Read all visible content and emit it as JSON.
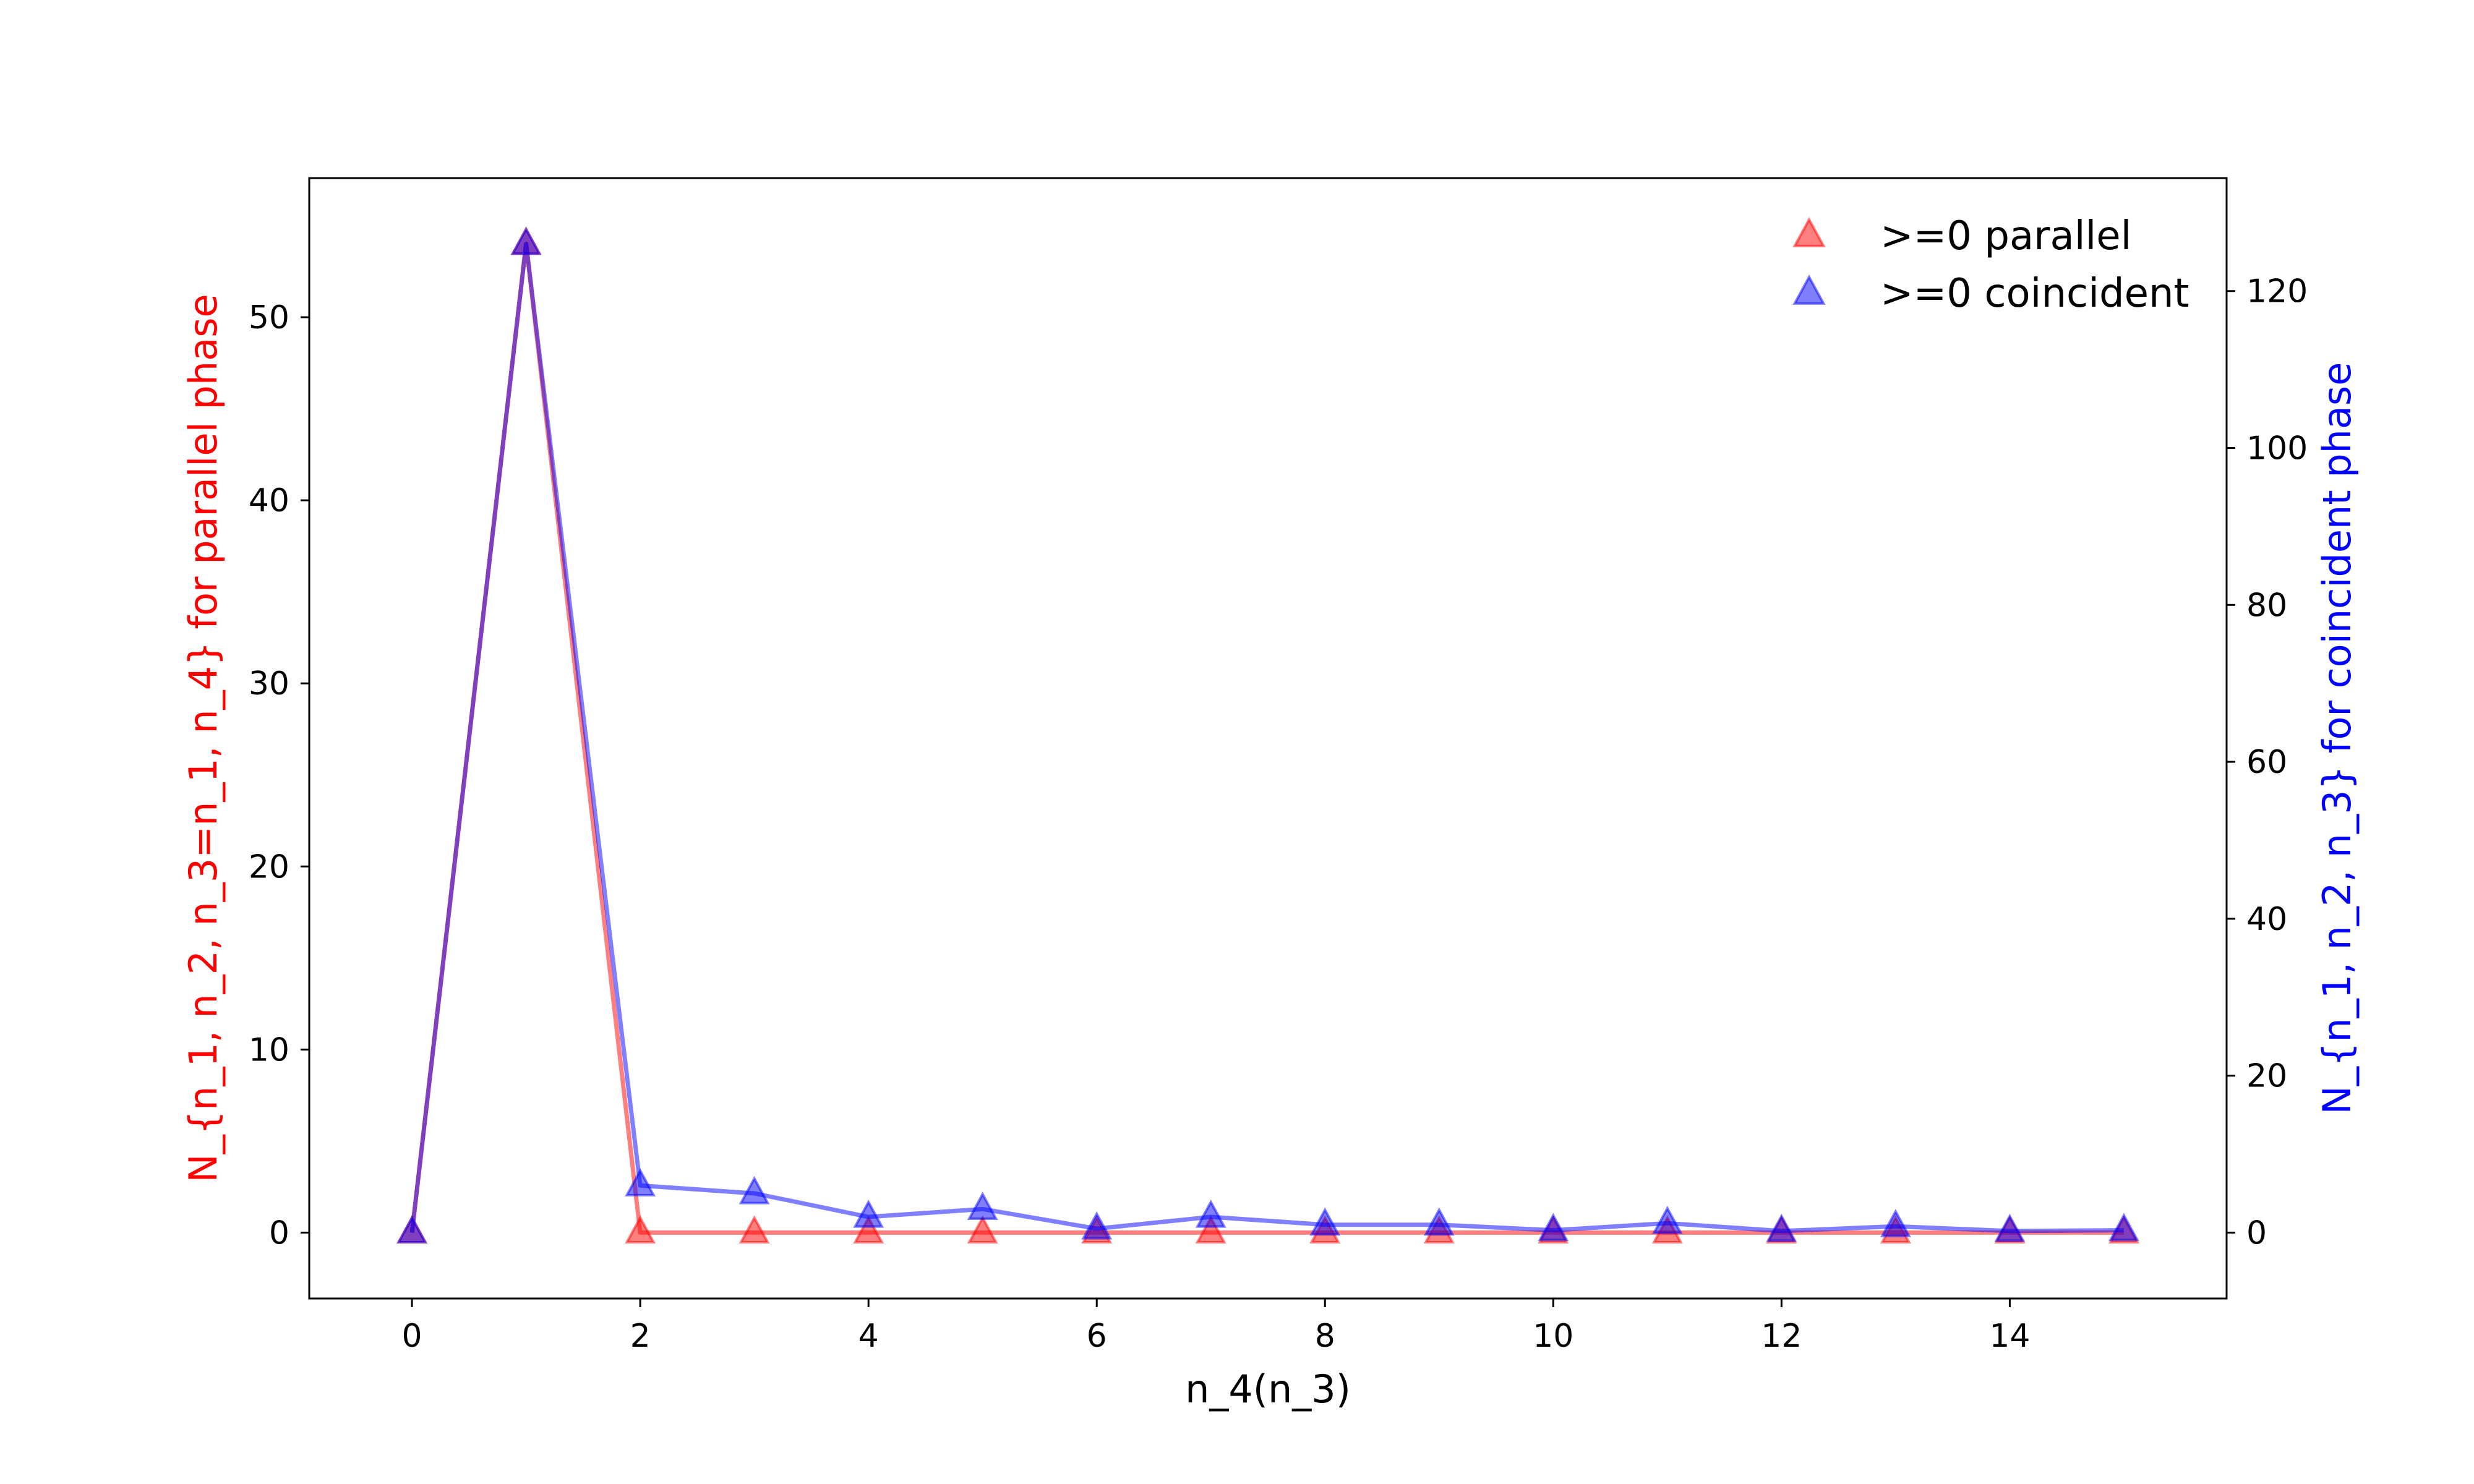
{
  "chart_data": {
    "type": "line",
    "xlabel": "n_4(n_3)",
    "ylabel_left": "N_{n_1, n_2, n_3=n_1, n_4} for parallel phase",
    "ylabel_right": "N_{n_1, n_2, n_3} for coincident phase",
    "xlim": [
      -0.9,
      15.9
    ],
    "ylim_left": [
      -3.6,
      57.6
    ],
    "ylim_right": [
      -8.4,
      134.4
    ],
    "x_ticks": [
      0,
      2,
      4,
      6,
      8,
      10,
      12,
      14
    ],
    "x_tick_labels": [
      "0",
      "2",
      "4",
      "6",
      "8",
      "10",
      "12",
      "14"
    ],
    "y_left_ticks": [
      0,
      10,
      20,
      30,
      40,
      50
    ],
    "y_left_tick_labels": [
      "0",
      "10",
      "20",
      "30",
      "40",
      "50"
    ],
    "y_right_ticks": [
      0,
      20,
      40,
      60,
      80,
      100,
      120
    ],
    "y_right_tick_labels": [
      "0",
      "20",
      "40",
      "60",
      "80",
      "100",
      "120"
    ],
    "x": [
      0,
      1,
      2,
      3,
      4,
      5,
      6,
      7,
      8,
      9,
      10,
      11,
      12,
      13,
      14,
      15
    ],
    "series": [
      {
        "name": ">=0 parallel",
        "axis": "left",
        "color": "#ff0000",
        "marker": "triangle",
        "values": [
          0,
          54,
          0,
          0,
          0,
          0,
          0,
          0,
          0,
          0,
          0,
          0,
          0,
          0,
          0,
          0
        ]
      },
      {
        "name": ">=0 coincident",
        "axis": "right",
        "color": "#0000ff",
        "marker": "triangle",
        "values": [
          0,
          126,
          6,
          5,
          2,
          3,
          0.5,
          2,
          1,
          1,
          0.3,
          1.2,
          0.2,
          0.8,
          0.2,
          0.3
        ]
      }
    ],
    "legend_position": "upper right",
    "grid": false
  },
  "colors": {
    "left_axis_label": "#ff0000",
    "right_axis_label": "#0000ff"
  }
}
